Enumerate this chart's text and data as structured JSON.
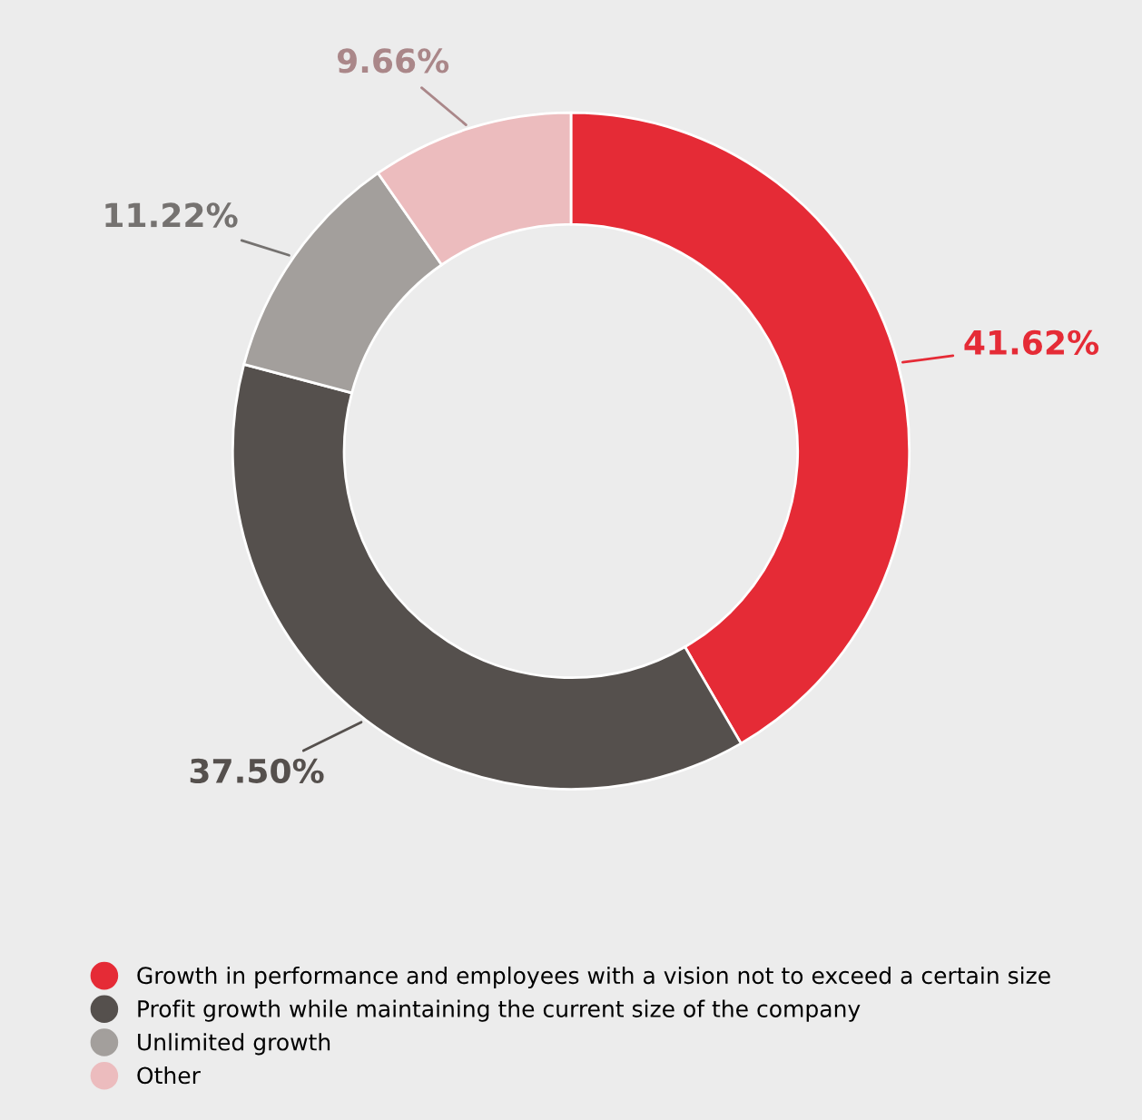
{
  "chart_data": {
    "type": "donut",
    "categories": [
      "Growth in performance and employees with a vision not to exceed a certain size",
      "Profit growth while maintaining the current size of the company",
      "Unlimited growth",
      "Other"
    ],
    "values": [
      41.62,
      37.5,
      11.22,
      9.66
    ],
    "colors": [
      "#e52b36",
      "#55504d",
      "#a39f9c",
      "#ecbcbe"
    ],
    "value_labels": [
      "41.62%",
      "37.50%",
      "11.22%",
      "9.66%"
    ],
    "legend": "bottom"
  }
}
